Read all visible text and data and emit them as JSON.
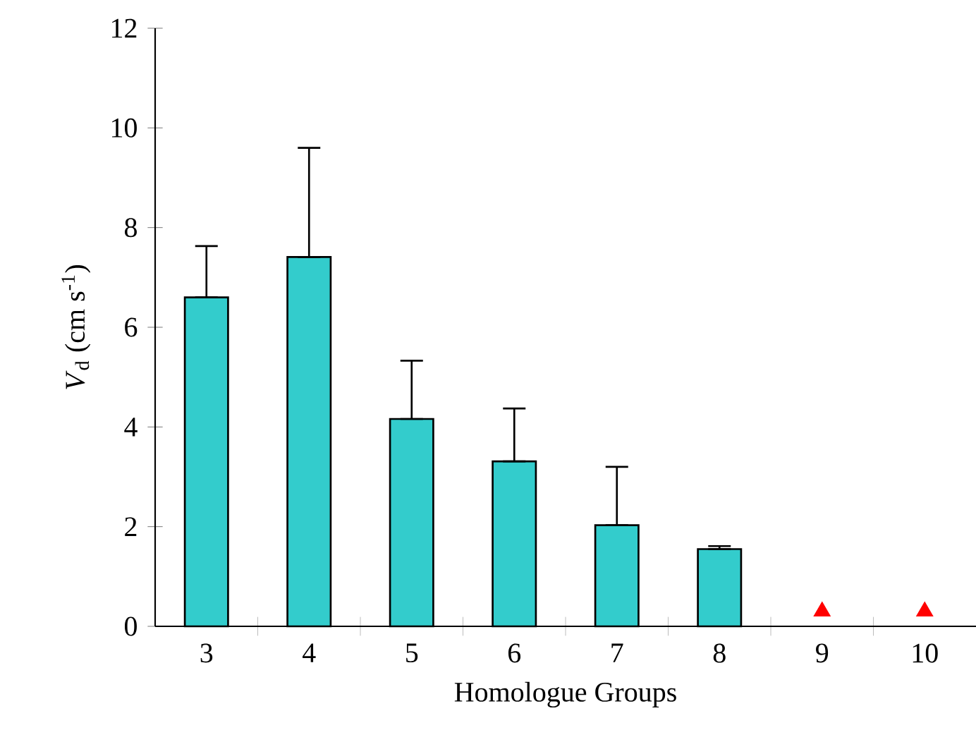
{
  "chart_data": {
    "type": "bar",
    "xlabel": "Homologue Groups",
    "ylabel": "*V*$_{d}$ (cm s$^{-1}$)",
    "categories": [
      "3",
      "4",
      "5",
      "6",
      "7",
      "8",
      "9",
      "10"
    ],
    "ylim": [
      0,
      12
    ],
    "yticks": [
      0,
      2,
      4,
      6,
      8,
      10,
      12
    ],
    "series": [
      {
        "color": "#33cccc",
        "values": [
          6.6,
          7.41,
          4.16,
          3.31,
          2.03,
          1.55,
          null,
          null
        ],
        "errors": [
          [
            6.6,
            7.63
          ],
          [
            7.41,
            9.6
          ],
          [
            4.16,
            5.33
          ],
          [
            3.31,
            4.37
          ],
          [
            2.03,
            3.2
          ],
          [
            1.55,
            1.61
          ],
          null,
          null
        ]
      },
      {
        "type": "scatter",
        "color": "#ff0000",
        "marker": "triangle",
        "x": [
          "9",
          "10"
        ],
        "values": [
          0.3,
          0.3
        ]
      }
    ]
  }
}
